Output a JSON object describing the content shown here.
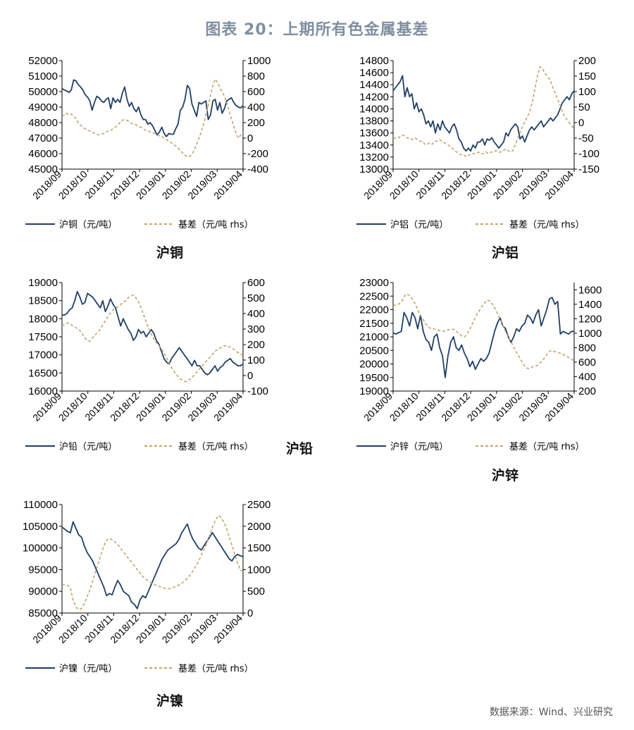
{
  "title": "图表 20：上期所有色金属基差",
  "source": "数据来源：Wind、兴业研究",
  "colors": {
    "price": "#1f3f66",
    "basis": "#c2a36b"
  },
  "chart_data": [
    {
      "type": "line",
      "caption": "沪铜",
      "x_labels": [
        "2018/09",
        "2018/10",
        "2018/11",
        "2018/12",
        "2019/01",
        "2019/02",
        "2019/03",
        "2019/04"
      ],
      "ylim_left": [
        45000,
        52000
      ],
      "yticks_left": [
        "45000",
        "46000",
        "47000",
        "48000",
        "49000",
        "50000",
        "51000",
        "52000"
      ],
      "ylim_right": [
        -400,
        1000
      ],
      "yticks_right": [
        "-400",
        "-200",
        "0",
        "200",
        "400",
        "600",
        "800",
        "1000"
      ],
      "series": [
        {
          "name": "沪铜（元/吨）",
          "axis": "left",
          "style": "solid",
          "values": [
            50200,
            50100,
            50050,
            49950,
            50100,
            50750,
            50700,
            50450,
            50300,
            50100,
            49800,
            49650,
            49400,
            48800,
            49300,
            49700,
            49600,
            49400,
            49300,
            49500,
            49600,
            48900,
            49600,
            49300,
            49500,
            49300,
            49900,
            50300,
            49500,
            49050,
            49300,
            48900,
            48700,
            49000,
            48500,
            48200,
            48200,
            47900,
            48000,
            47800,
            47500,
            47200,
            47400,
            47700,
            47300,
            47100,
            47300,
            47250,
            47250,
            47600,
            47900,
            48800,
            49000,
            49500,
            50400,
            50200,
            49200,
            48800,
            48400,
            49300,
            49200,
            49300,
            49400,
            48200,
            48500,
            49400,
            49500,
            48800,
            49300,
            48600,
            48900,
            49400,
            49500,
            49600,
            49300,
            49100,
            49000,
            48950,
            49100
          ]
        },
        {
          "name": "基差（元/吨 rhs）",
          "axis": "right",
          "style": "dashed",
          "values": [
            280,
            300,
            320,
            300,
            310,
            290,
            250,
            200,
            170,
            140,
            120,
            100,
            90,
            80,
            60,
            50,
            40,
            50,
            60,
            80,
            90,
            100,
            120,
            140,
            170,
            200,
            230,
            240,
            230,
            210,
            190,
            180,
            170,
            150,
            140,
            120,
            100,
            90,
            80,
            70,
            60,
            40,
            30,
            20,
            0,
            -20,
            -40,
            -60,
            -80,
            -100,
            -130,
            -160,
            -190,
            -220,
            -240,
            -240,
            -210,
            -150,
            -80,
            0,
            80,
            180,
            300,
            420,
            560,
            680,
            760,
            720,
            650,
            600,
            540,
            450,
            350,
            250,
            150,
            60,
            0,
            40,
            80
          ]
        }
      ]
    },
    {
      "type": "line",
      "caption": "沪铝",
      "x_labels": [
        "2018/09",
        "2018/10",
        "2018/11",
        "2018/12",
        "2019/01",
        "2019/02",
        "2019/03",
        "2019/04"
      ],
      "ylim_left": [
        13000,
        14800
      ],
      "yticks_left": [
        "13000",
        "13200",
        "13400",
        "13600",
        "13800",
        "14000",
        "14200",
        "14400",
        "14600",
        "14800"
      ],
      "ylim_right": [
        -150,
        200
      ],
      "yticks_right": [
        "-150",
        "-100",
        "-50",
        "0",
        "50",
        "100",
        "150",
        "200"
      ],
      "series": [
        {
          "name": "沪铝（元/吨）",
          "axis": "left",
          "style": "solid",
          "values": [
            14300,
            14350,
            14400,
            14450,
            14550,
            14200,
            14350,
            14200,
            14250,
            14000,
            14100,
            13950,
            14000,
            13900,
            13750,
            13800,
            13700,
            13800,
            13600,
            13750,
            13650,
            13800,
            13700,
            13650,
            13600,
            13700,
            13750,
            13650,
            13500,
            13450,
            13350,
            13300,
            13350,
            13300,
            13400,
            13350,
            13450,
            13450,
            13500,
            13400,
            13500,
            13480,
            13520,
            13450,
            13400,
            13350,
            13400,
            13450,
            13600,
            13550,
            13650,
            13700,
            13750,
            13700,
            13500,
            13550,
            13450,
            13550,
            13650,
            13700,
            13650,
            13700,
            13750,
            13800,
            13700,
            13750,
            13800,
            13850,
            13800,
            13850,
            13900,
            14000,
            14100,
            14150,
            14200,
            14150,
            14250,
            14300
          ]
        },
        {
          "name": "基差（元/吨 rhs）",
          "axis": "right",
          "style": "dashed",
          "values": [
            -50,
            -50,
            -50,
            -45,
            -40,
            -45,
            -50,
            -50,
            -55,
            -50,
            -55,
            -60,
            -60,
            -70,
            -70,
            -65,
            -70,
            -60,
            -60,
            -55,
            -60,
            -65,
            -70,
            -75,
            -80,
            -90,
            -95,
            -100,
            -105,
            -105,
            -110,
            -105,
            -100,
            -100,
            -100,
            -95,
            -100,
            -100,
            -95,
            -100,
            -95,
            -95,
            -90,
            -95,
            -95,
            -90,
            -85,
            -90,
            -95,
            -90,
            -70,
            -50,
            -30,
            -10,
            5,
            20,
            40,
            70,
            110,
            150,
            180,
            175,
            160,
            150,
            140,
            120,
            100,
            80,
            60,
            40,
            20,
            10,
            0,
            -10,
            -20
          ]
        }
      ]
    },
    {
      "type": "line",
      "caption": "沪铅",
      "x_labels": [
        "2018/09",
        "2018/10",
        "2018/11",
        "2018/12",
        "2019/01",
        "2019/02",
        "2019/03",
        "2019/04"
      ],
      "ylim_left": [
        16000,
        19000
      ],
      "yticks_left": [
        "16000",
        "16500",
        "17000",
        "17500",
        "18000",
        "18500",
        "19000"
      ],
      "ylim_right": [
        -100,
        600
      ],
      "yticks_right": [
        "-100",
        "0",
        "100",
        "200",
        "300",
        "400",
        "500",
        "600"
      ],
      "series": [
        {
          "name": "沪铅（元/吨）",
          "axis": "left",
          "style": "solid",
          "values": [
            18100,
            18100,
            18150,
            18250,
            18300,
            18500,
            18750,
            18600,
            18400,
            18450,
            18700,
            18650,
            18600,
            18500,
            18400,
            18300,
            18500,
            18200,
            18350,
            18550,
            18400,
            18300,
            18050,
            17800,
            18000,
            17850,
            17700,
            17600,
            17400,
            17500,
            17700,
            17600,
            17650,
            17500,
            17600,
            17700,
            17600,
            17400,
            17300,
            17100,
            16900,
            16800,
            16750,
            16900,
            17000,
            17100,
            17200,
            17100,
            17000,
            16900,
            16800,
            16700,
            16850,
            16700,
            16700,
            16600,
            16500,
            16450,
            16500,
            16600,
            16700,
            16550,
            16650,
            16700,
            16800,
            16850,
            16900,
            16800,
            16750,
            16700,
            16700,
            16750
          ]
        },
        {
          "name": "基差（元/吨 rhs）",
          "axis": "right",
          "style": "dashed",
          "values": [
            320,
            330,
            340,
            330,
            320,
            310,
            300,
            280,
            250,
            230,
            220,
            240,
            260,
            280,
            300,
            330,
            360,
            390,
            410,
            430,
            440,
            450,
            470,
            480,
            500,
            510,
            520,
            500,
            470,
            430,
            380,
            330,
            290,
            250,
            220,
            200,
            180,
            150,
            120,
            80,
            50,
            20,
            0,
            -20,
            -30,
            -40,
            -30,
            -20,
            0,
            20,
            40,
            60,
            80,
            100,
            120,
            140,
            160,
            170,
            180,
            190,
            195,
            185,
            175,
            165,
            150,
            140,
            130
          ]
        }
      ]
    },
    {
      "type": "line",
      "caption": "沪锌",
      "x_labels": [
        "2018/09",
        "2018/10",
        "2018/11",
        "2018/12",
        "2019/01",
        "2019/02",
        "2019/03",
        "2019/04"
      ],
      "ylim_left": [
        19000,
        23000
      ],
      "yticks_left": [
        "19000",
        "19500",
        "20000",
        "20500",
        "21000",
        "21500",
        "22000",
        "22500",
        "23000"
      ],
      "ylim_right": [
        200,
        1700
      ],
      "yticks_right": [
        "200",
        "400",
        "600",
        "800",
        "1000",
        "1200",
        "1400",
        "1600"
      ],
      "series": [
        {
          "name": "沪锌（元/吨）",
          "axis": "left",
          "style": "solid",
          "values": [
            21150,
            21100,
            21150,
            21200,
            21900,
            21700,
            21400,
            21900,
            21700,
            21300,
            21800,
            21200,
            20900,
            20800,
            20500,
            21000,
            21100,
            20600,
            20300,
            19500,
            20300,
            20800,
            21000,
            20600,
            20500,
            20700,
            20400,
            20200,
            19900,
            20100,
            19800,
            20000,
            20200,
            20100,
            20200,
            20400,
            20800,
            21200,
            21500,
            21700,
            21400,
            21300,
            21000,
            20800,
            21000,
            21300,
            21200,
            21400,
            21500,
            21800,
            21700,
            21500,
            21800,
            22000,
            21400,
            21700,
            22000,
            22400,
            22450,
            22200,
            22300,
            21100,
            21200,
            21150,
            21100,
            21200,
            21200
          ]
        },
        {
          "name": "基差（元/吨 rhs）",
          "axis": "right",
          "style": "dashed",
          "values": [
            1380,
            1390,
            1400,
            1420,
            1480,
            1540,
            1530,
            1500,
            1450,
            1380,
            1300,
            1230,
            1180,
            1120,
            1080,
            1060,
            1060,
            1050,
            1040,
            1030,
            1030,
            1040,
            1050,
            1060,
            1050,
            1020,
            990,
            960,
            950,
            980,
            1050,
            1120,
            1200,
            1270,
            1320,
            1380,
            1420,
            1460,
            1440,
            1400,
            1340,
            1270,
            1190,
            1110,
            1030,
            960,
            900,
            830,
            760,
            700,
            640,
            580,
            530,
            510,
            520,
            540,
            550,
            560,
            600,
            640,
            690,
            740,
            760,
            750,
            740,
            730,
            720,
            700,
            680,
            660,
            640,
            620
          ]
        }
      ]
    },
    {
      "type": "line",
      "caption": "沪镍",
      "x_labels": [
        "2018/09",
        "2018/10",
        "2018/11",
        "2018/12",
        "2019/01",
        "2019/02",
        "2019/03",
        "2019/04"
      ],
      "ylim_left": [
        85000,
        110000
      ],
      "yticks_left": [
        "85000",
        "90000",
        "95000",
        "100000",
        "105000",
        "110000"
      ],
      "ylim_right": [
        0,
        2500
      ],
      "yticks_right": [
        "0",
        "500",
        "1000",
        "1500",
        "2000",
        "2500"
      ],
      "series": [
        {
          "name": "沪镍（元/吨）",
          "axis": "left",
          "style": "solid",
          "values": [
            104800,
            104300,
            103800,
            103500,
            106000,
            104500,
            103000,
            102500,
            100500,
            99000,
            98000,
            97000,
            95500,
            94000,
            92500,
            91000,
            89000,
            89500,
            89200,
            91000,
            92500,
            91500,
            90000,
            89500,
            89000,
            87500,
            87000,
            86000,
            88000,
            89000,
            88500,
            90000,
            91500,
            93000,
            94500,
            96000,
            97500,
            98500,
            99500,
            100000,
            100500,
            101000,
            102000,
            103500,
            104500,
            105500,
            103500,
            102000,
            101000,
            100000,
            99500,
            100500,
            101500,
            102500,
            103500,
            102500,
            101500,
            100500,
            99500,
            98500,
            97500,
            97000,
            98000,
            98500,
            98200,
            98000
          ]
        },
        {
          "name": "基差（元/吨 rhs）",
          "axis": "right",
          "style": "dashed",
          "values": [
            660,
            650,
            630,
            600,
            300,
            150,
            80,
            100,
            200,
            350,
            500,
            700,
            900,
            1100,
            1300,
            1500,
            1650,
            1720,
            1700,
            1650,
            1600,
            1520,
            1440,
            1360,
            1280,
            1200,
            1120,
            1040,
            960,
            880,
            800,
            760,
            720,
            680,
            650,
            620,
            600,
            580,
            560,
            560,
            580,
            600,
            620,
            660,
            700,
            760,
            820,
            900,
            1000,
            1100,
            1220,
            1360,
            1500,
            1650,
            1820,
            2000,
            2150,
            2250,
            2200,
            2100,
            1950,
            1750,
            1550,
            1350,
            1150,
            1000,
            950
          ]
        }
      ]
    }
  ]
}
